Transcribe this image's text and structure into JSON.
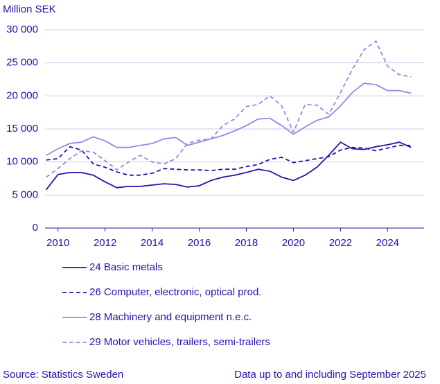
{
  "chart_data": {
    "type": "line",
    "y_axis_label": "Million SEK",
    "x": [
      2009.5,
      2010.0,
      2010.5,
      2011.0,
      2011.5,
      2012.0,
      2012.5,
      2013.0,
      2013.5,
      2014.0,
      2014.5,
      2015.0,
      2015.5,
      2016.0,
      2016.5,
      2017.0,
      2017.5,
      2018.0,
      2018.5,
      2019.0,
      2019.5,
      2020.0,
      2020.5,
      2021.0,
      2021.5,
      2022.0,
      2022.5,
      2023.0,
      2023.5,
      2024.0,
      2024.5,
      2025.0
    ],
    "series": [
      {
        "name": "24 Basic metals",
        "color": "#1e14aa",
        "dashed": false,
        "values": [
          5800,
          8100,
          8400,
          8400,
          8000,
          7000,
          6100,
          6300,
          6300,
          6500,
          6700,
          6600,
          6200,
          6400,
          7200,
          7700,
          8000,
          8400,
          8900,
          8600,
          7700,
          7200,
          8000,
          9200,
          11000,
          13000,
          12000,
          11900,
          12300,
          12600,
          13000,
          12200
        ]
      },
      {
        "name": "26 Computer, electronic, optical prod.",
        "color": "#1e14aa",
        "dashed": true,
        "values": [
          10300,
          10500,
          12300,
          11800,
          9700,
          9200,
          8500,
          8000,
          8000,
          8300,
          9000,
          8900,
          8800,
          8800,
          8700,
          8900,
          8900,
          9300,
          9600,
          10400,
          10700,
          9900,
          10200,
          10500,
          10800,
          11800,
          12200,
          12100,
          11700,
          12100,
          12500,
          12500
        ]
      },
      {
        "name": "28 Machinery and equipment n.e.c.",
        "color": "#8c8ce6",
        "dashed": false,
        "values": [
          11000,
          12000,
          12800,
          13000,
          13800,
          13200,
          12200,
          12200,
          12500,
          12800,
          13500,
          13700,
          12500,
          13000,
          13500,
          14000,
          14700,
          15500,
          16500,
          16600,
          15500,
          14200,
          15300,
          16300,
          16800,
          18500,
          20500,
          21900,
          21700,
          20800,
          20800,
          20400
        ]
      },
      {
        "name": "29 Motor vehicles, trailers, semi-trailers",
        "color": "#8c8ce6",
        "dashed": true,
        "values": [
          7700,
          9000,
          10500,
          11700,
          11500,
          10200,
          8800,
          10000,
          11000,
          10000,
          9700,
          10500,
          12800,
          13300,
          13500,
          15500,
          16500,
          18400,
          18700,
          20000,
          18500,
          14500,
          18700,
          18600,
          17200,
          20500,
          24000,
          27000,
          28300,
          24500,
          23200,
          22900
        ]
      }
    ],
    "xlim": [
      2009.45,
      2025.55
    ],
    "xticks": [
      2010,
      2012,
      2014,
      2016,
      2018,
      2020,
      2022,
      2024
    ],
    "ylim": [
      0,
      30000
    ],
    "yticks": [
      0,
      {
        "value": 5000,
        "label": "5 000"
      },
      {
        "value": 10000,
        "label": "10 000"
      },
      {
        "value": 15000,
        "label": "15 000"
      },
      {
        "value": 20000,
        "label": "20 000"
      },
      {
        "value": 25000,
        "label": "25 000"
      },
      {
        "value": 30000,
        "label": "30 000"
      }
    ],
    "grid": true,
    "source": "Source: Statistics Sweden",
    "note": "Data up to and including September 2025"
  }
}
